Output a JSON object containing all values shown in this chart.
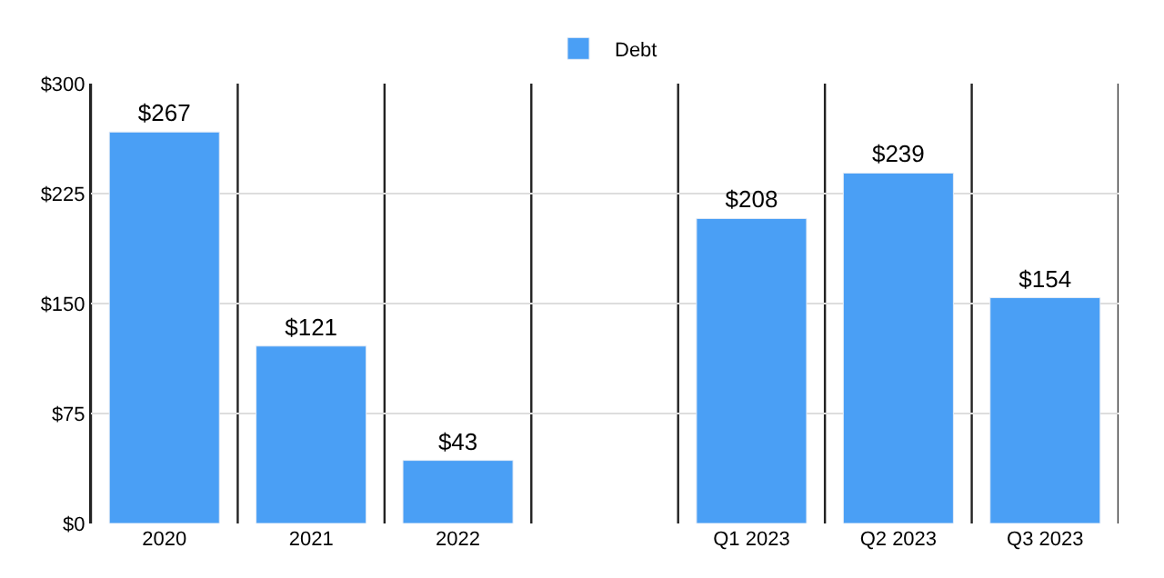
{
  "chart_data": {
    "type": "bar",
    "categories": [
      "2020",
      "2021",
      "2022",
      null,
      "Q1 2023",
      "Q2 2023",
      "Q3 2023"
    ],
    "series": [
      {
        "name": "Debt",
        "color": "#4a9ff5",
        "values": [
          267,
          121,
          43,
          null,
          208,
          239,
          154
        ],
        "value_labels": [
          "$267",
          "$121",
          "$43",
          null,
          "$208",
          "$239",
          "$154"
        ]
      }
    ],
    "ylim": [
      0,
      300
    ],
    "yticks": [
      {
        "value": 0,
        "label": "$0"
      },
      {
        "value": 75,
        "label": "$75"
      },
      {
        "value": 150,
        "label": "$150"
      },
      {
        "value": 225,
        "label": "$225"
      },
      {
        "value": 300,
        "label": "$300"
      }
    ],
    "grid": true,
    "legend": "top"
  }
}
